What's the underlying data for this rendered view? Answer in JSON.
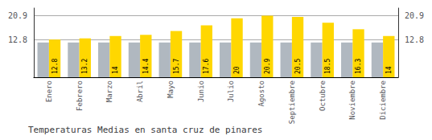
{
  "chart_data": {
    "type": "bar",
    "title": "Temperaturas Medias en santa cruz de pinares",
    "categories": [
      "Enero",
      "Febrero",
      "Marzo",
      "Abril",
      "Mayo",
      "Junio",
      "Julio",
      "Agosto",
      "Septiembre",
      "Octubre",
      "Noviembre",
      "Diciembre"
    ],
    "series": [
      {
        "color": "#B0B8C0",
        "values": [
          11.8,
          11.8,
          11.8,
          11.8,
          11.8,
          11.8,
          11.8,
          11.8,
          11.8,
          11.8,
          11.8,
          11.8
        ]
      },
      {
        "color": "#FFD700",
        "values": [
          12.8,
          13.2,
          14.0,
          14.4,
          15.7,
          17.6,
          20.0,
          20.9,
          20.5,
          18.5,
          16.3,
          14.0
        ],
        "data_labels": true
      }
    ],
    "ylim": [
      0,
      23.5
    ],
    "yticks": [
      12.8,
      20.9
    ],
    "y2lim": [
      0,
      23.5
    ],
    "y2ticks": [
      12.8,
      20.9
    ],
    "grid": true
  }
}
